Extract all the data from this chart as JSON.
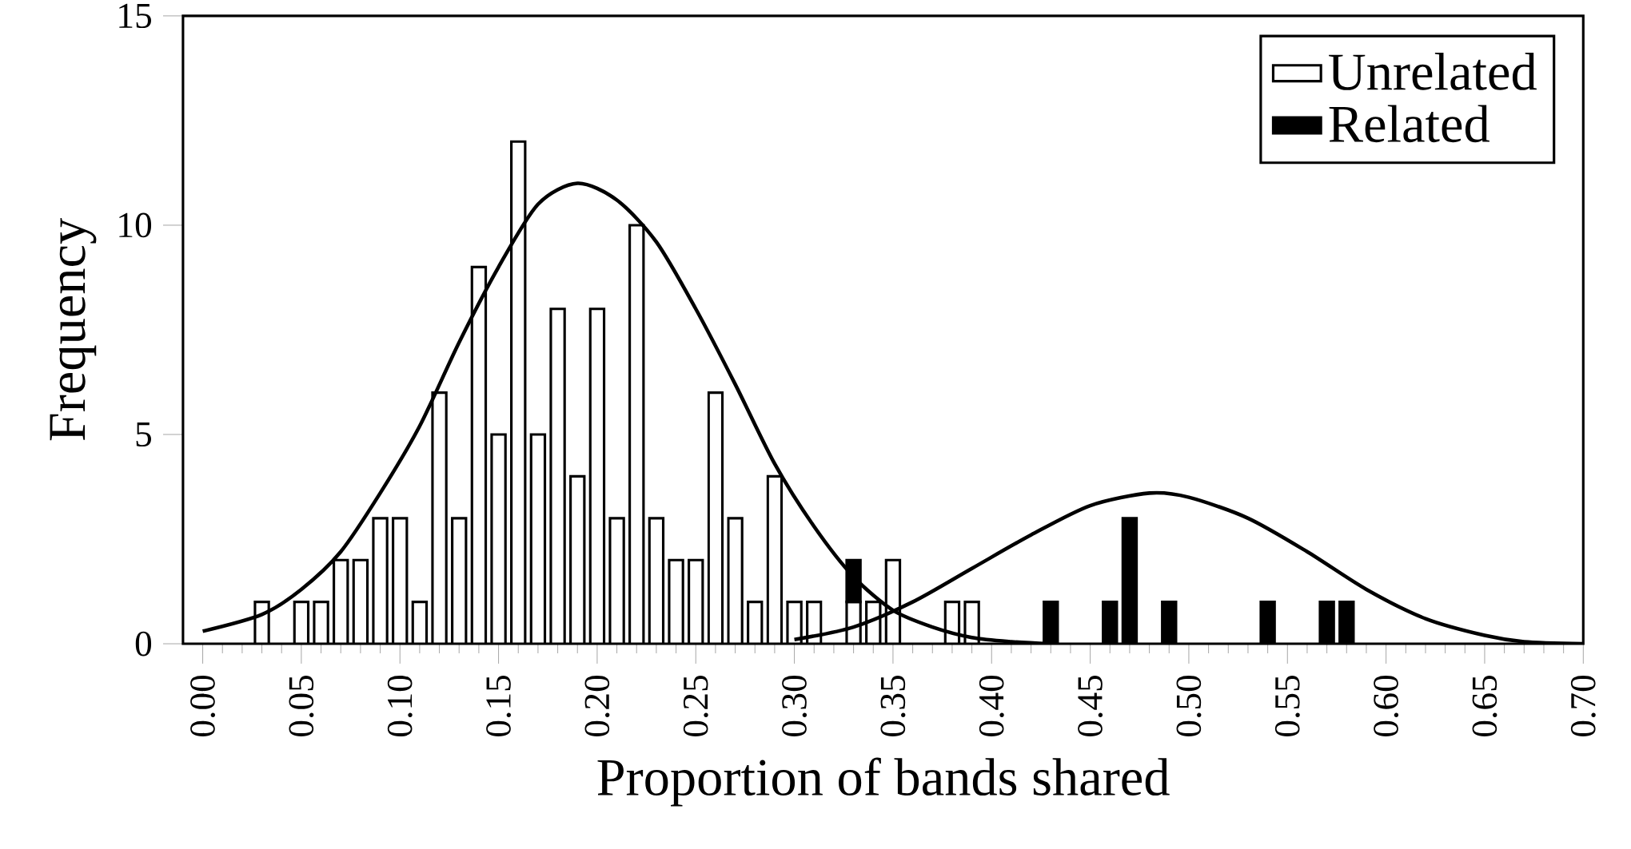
{
  "chart_data": {
    "type": "bar",
    "xlabel": "Proportion of bands shared",
    "ylabel": "Frequency",
    "xlim": [
      -0.01,
      0.7
    ],
    "ylim": [
      0,
      15
    ],
    "xticks": [
      {
        "value": 0,
        "label": "0.00"
      },
      {
        "value": 0.05,
        "label": "0.05"
      },
      {
        "value": 0.1,
        "label": "0.10"
      },
      {
        "value": 0.15,
        "label": "0.15"
      },
      {
        "value": 0.2,
        "label": "0.20"
      },
      {
        "value": 0.25,
        "label": "0.25"
      },
      {
        "value": 0.3,
        "label": "0.30"
      },
      {
        "value": 0.35,
        "label": "0.35"
      },
      {
        "value": 0.4,
        "label": "0.40"
      },
      {
        "value": 0.45,
        "label": "0.45"
      },
      {
        "value": 0.5,
        "label": "0.50"
      },
      {
        "value": 0.55,
        "label": "0.55"
      },
      {
        "value": 0.6,
        "label": "0.60"
      },
      {
        "value": 0.65,
        "label": "0.65"
      },
      {
        "value": 0.7,
        "label": "0.70"
      }
    ],
    "yticks": [
      0,
      5,
      10,
      15
    ],
    "legend": "top right",
    "series": [
      {
        "name": "Unrelated",
        "color": "#ffffff",
        "x": [
          0.03,
          0.05,
          0.06,
          0.07,
          0.08,
          0.09,
          0.1,
          0.11,
          0.12,
          0.13,
          0.14,
          0.15,
          0.16,
          0.17,
          0.18,
          0.19,
          0.2,
          0.21,
          0.22,
          0.23,
          0.24,
          0.25,
          0.26,
          0.27,
          0.28,
          0.29,
          0.3,
          0.31,
          0.33,
          0.34,
          0.35,
          0.38,
          0.39
        ],
        "values": [
          1,
          1,
          1,
          2,
          2,
          3,
          3,
          1,
          6,
          3,
          9,
          5,
          12,
          5,
          8,
          4,
          8,
          3,
          10,
          3,
          2,
          2,
          6,
          3,
          1,
          4,
          1,
          1,
          1,
          1,
          2,
          1,
          1
        ]
      },
      {
        "name": "Related",
        "color": "#000000",
        "x": [
          0.33,
          0.43,
          0.46,
          0.47,
          0.49,
          0.54,
          0.57,
          0.58
        ],
        "values": [
          1,
          1,
          1,
          3,
          1,
          1,
          1,
          1
        ],
        "base": [
          1,
          0,
          0,
          0,
          0,
          0,
          0,
          0
        ]
      },
      {
        "type": "line",
        "color": "#000000",
        "x": [
          0.0,
          0.03,
          0.05,
          0.07,
          0.09,
          0.11,
          0.13,
          0.15,
          0.17,
          0.19,
          0.21,
          0.23,
          0.25,
          0.27,
          0.29,
          0.31,
          0.33,
          0.35,
          0.37,
          0.39,
          0.41,
          0.43
        ],
        "values": [
          0.3,
          0.7,
          1.3,
          2.2,
          3.6,
          5.2,
          7.2,
          9.0,
          10.5,
          11.0,
          10.6,
          9.6,
          8.0,
          6.2,
          4.3,
          2.8,
          1.6,
          0.8,
          0.4,
          0.15,
          0.05,
          0
        ]
      },
      {
        "type": "line",
        "color": "#000000",
        "x": [
          0.3,
          0.33,
          0.36,
          0.39,
          0.42,
          0.45,
          0.48,
          0.5,
          0.53,
          0.56,
          0.59,
          0.62,
          0.65,
          0.67,
          0.7
        ],
        "values": [
          0.1,
          0.4,
          1.0,
          1.8,
          2.6,
          3.3,
          3.6,
          3.5,
          3.0,
          2.2,
          1.3,
          0.6,
          0.2,
          0.05,
          0
        ]
      }
    ]
  }
}
